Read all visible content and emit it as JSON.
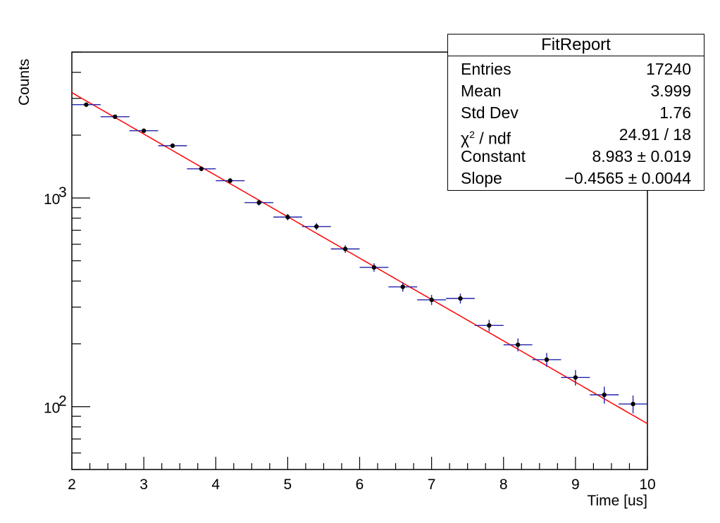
{
  "chart_data": {
    "type": "scatter",
    "title": "",
    "xlabel": "Time [us]",
    "ylabel": "Counts",
    "xlim": [
      2,
      10
    ],
    "ylim": [
      50,
      5000
    ],
    "yscale": "log",
    "x_tick_labels": [
      "2",
      "3",
      "4",
      "5",
      "6",
      "7",
      "8",
      "9",
      "10"
    ],
    "y_tick_labels": [
      "10",
      "10"
    ],
    "y_tick_exponents": [
      "3",
      "2"
    ],
    "grid": false,
    "series": [
      {
        "type": "errorbar",
        "x": [
          2.2,
          2.6,
          3.0,
          3.4,
          3.8,
          4.2,
          4.6,
          5.0,
          5.4,
          5.8,
          6.2,
          6.6,
          7.0,
          7.4,
          7.8,
          8.2,
          8.6,
          9.0,
          9.4,
          9.8
        ],
        "y": [
          2800,
          2450,
          2100,
          1780,
          1380,
          1210,
          950,
          810,
          730,
          570,
          465,
          375,
          325,
          330,
          245,
          198,
          168,
          138,
          114,
          103
        ],
        "xerr": 0.2,
        "point_color": "#000000",
        "error_color": "#2222aa"
      },
      {
        "type": "fit",
        "function": "expo",
        "constant": 8.983,
        "slope": -0.4565,
        "x_range": [
          2,
          10
        ],
        "color": "#ff0000"
      }
    ],
    "legend": "top-right"
  },
  "stats": {
    "title": "FitReport",
    "rows": [
      {
        "label": "Entries",
        "value": "17240"
      },
      {
        "label": "Mean",
        "value": "3.999"
      },
      {
        "label": "Std Dev",
        "value": "1.76"
      },
      {
        "label_main": "χ",
        "label_sup": "2",
        "label_rest": " / ndf",
        "value": "24.91 / 18"
      },
      {
        "label": "Constant",
        "value": "8.983 ± 0.019"
      },
      {
        "label": "Slope",
        "value": "−0.4565 ± 0.0044"
      }
    ]
  }
}
